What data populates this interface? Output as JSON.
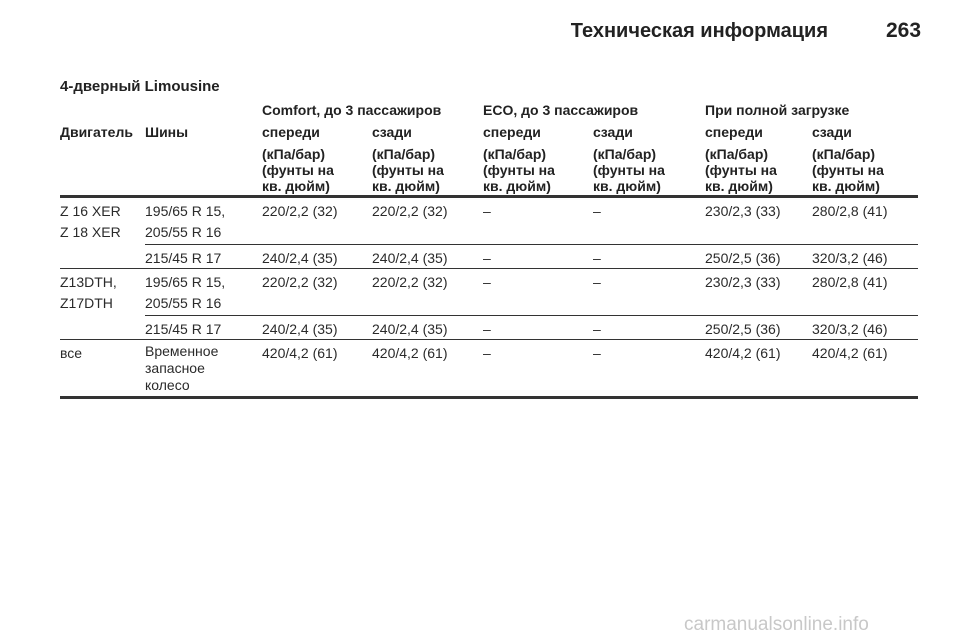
{
  "header": {
    "title": "Техническая информация",
    "page_number": "263"
  },
  "section_title": "4-дверный Limousine",
  "table": {
    "groups": [
      "Comfort, до 3 пассажиров",
      "ECO, до 3 пассажиров",
      "При полной загрузке"
    ],
    "columns": [
      "Двигатель",
      "Шины",
      "спереди",
      "сзади",
      "спереди",
      "сзади",
      "спереди",
      "сзади"
    ],
    "unit": [
      "(кПа/бар)",
      "(фунты на",
      "кв. дюйм)"
    ],
    "rows": [
      {
        "engine": [
          "Z 16 XER",
          "Z 18 XER"
        ],
        "tires": [
          "195/65 R 15,",
          "205/55 R 16"
        ],
        "values": [
          "220/2,2 (32)",
          "220/2,2 (32)",
          "–",
          "–",
          "230/2,3 (33)",
          "280/2,8 (41)"
        ]
      },
      {
        "engine": [],
        "tires": [
          "215/45 R 17"
        ],
        "values": [
          "240/2,4 (35)",
          "240/2,4 (35)",
          "–",
          "–",
          "250/2,5 (36)",
          "320/3,2 (46)"
        ]
      },
      {
        "engine": [
          "Z13DTH,",
          "Z17DTH"
        ],
        "tires": [
          "195/65 R 15,",
          "205/55 R 16"
        ],
        "values": [
          "220/2,2 (32)",
          "220/2,2 (32)",
          "–",
          "–",
          "230/2,3 (33)",
          "280/2,8 (41)"
        ]
      },
      {
        "engine": [],
        "tires": [
          "215/45 R 17"
        ],
        "values": [
          "240/2,4 (35)",
          "240/2,4 (35)",
          "–",
          "–",
          "250/2,5 (36)",
          "320/3,2 (46)"
        ]
      },
      {
        "engine": [
          "все"
        ],
        "tires": [
          "Временное",
          "запасное",
          "колесо"
        ],
        "values": [
          "420/4,2 (61)",
          "420/4,2 (61)",
          "–",
          "–",
          "420/4,2 (61)",
          "420/4,2 (61)"
        ]
      }
    ]
  },
  "watermark": "carmanualsonline.info"
}
